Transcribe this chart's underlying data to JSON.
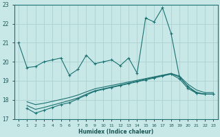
{
  "xlabel": "Humidex (Indice chaleur)",
  "background_color": "#c8e8e8",
  "grid_color": "#b0d4d4",
  "line_color": "#1a7070",
  "text_color": "#1a5555",
  "xlim": [
    -0.5,
    23.5
  ],
  "ylim": [
    17,
    23
  ],
  "xticks": [
    0,
    1,
    2,
    3,
    4,
    5,
    6,
    7,
    8,
    9,
    10,
    11,
    12,
    13,
    14,
    15,
    16,
    17,
    18,
    19,
    20,
    21,
    22,
    23
  ],
  "yticks": [
    17,
    18,
    19,
    20,
    21,
    22,
    23
  ],
  "line1_x": [
    0,
    1,
    2,
    3,
    4,
    5,
    6,
    7,
    8,
    9,
    10,
    11,
    12,
    13,
    14,
    15,
    16,
    17,
    18,
    19,
    20,
    21,
    22,
    23
  ],
  "line1_y": [
    21.0,
    19.7,
    19.75,
    20.0,
    20.1,
    20.2,
    19.3,
    19.6,
    20.35,
    19.9,
    20.0,
    20.1,
    19.8,
    20.2,
    19.4,
    22.3,
    22.1,
    22.85,
    21.5,
    19.2,
    18.7,
    18.35,
    18.3,
    18.3
  ],
  "line2_x": [
    1,
    2,
    3,
    4,
    5,
    6,
    7,
    8,
    9,
    10,
    11,
    12,
    13,
    14,
    15,
    16,
    17,
    18,
    19,
    20,
    21,
    22,
    23
  ],
  "line2_y": [
    17.55,
    17.3,
    17.45,
    17.6,
    17.75,
    17.85,
    18.05,
    18.25,
    18.45,
    18.55,
    18.65,
    18.75,
    18.85,
    18.95,
    19.05,
    19.15,
    19.25,
    19.35,
    19.1,
    18.6,
    18.35,
    18.3,
    18.3
  ],
  "line3_x": [
    1,
    2,
    3,
    4,
    5,
    6,
    7,
    8,
    9,
    10,
    11,
    12,
    13,
    14,
    15,
    16,
    17,
    18,
    19,
    20,
    21,
    22,
    23
  ],
  "line3_y": [
    17.7,
    17.5,
    17.6,
    17.72,
    17.84,
    17.96,
    18.1,
    18.3,
    18.48,
    18.58,
    18.68,
    18.78,
    18.88,
    18.98,
    19.08,
    19.18,
    19.28,
    19.38,
    19.2,
    18.7,
    18.4,
    18.3,
    18.3
  ],
  "line4_x": [
    1,
    2,
    3,
    4,
    5,
    6,
    7,
    8,
    9,
    10,
    11,
    12,
    13,
    14,
    15,
    16,
    17,
    18,
    19,
    20,
    21,
    22,
    23
  ],
  "line4_y": [
    17.9,
    17.75,
    17.82,
    17.92,
    18.02,
    18.12,
    18.25,
    18.42,
    18.58,
    18.67,
    18.76,
    18.85,
    18.94,
    19.03,
    19.12,
    19.21,
    19.3,
    19.39,
    19.25,
    18.82,
    18.52,
    18.38,
    18.38
  ]
}
